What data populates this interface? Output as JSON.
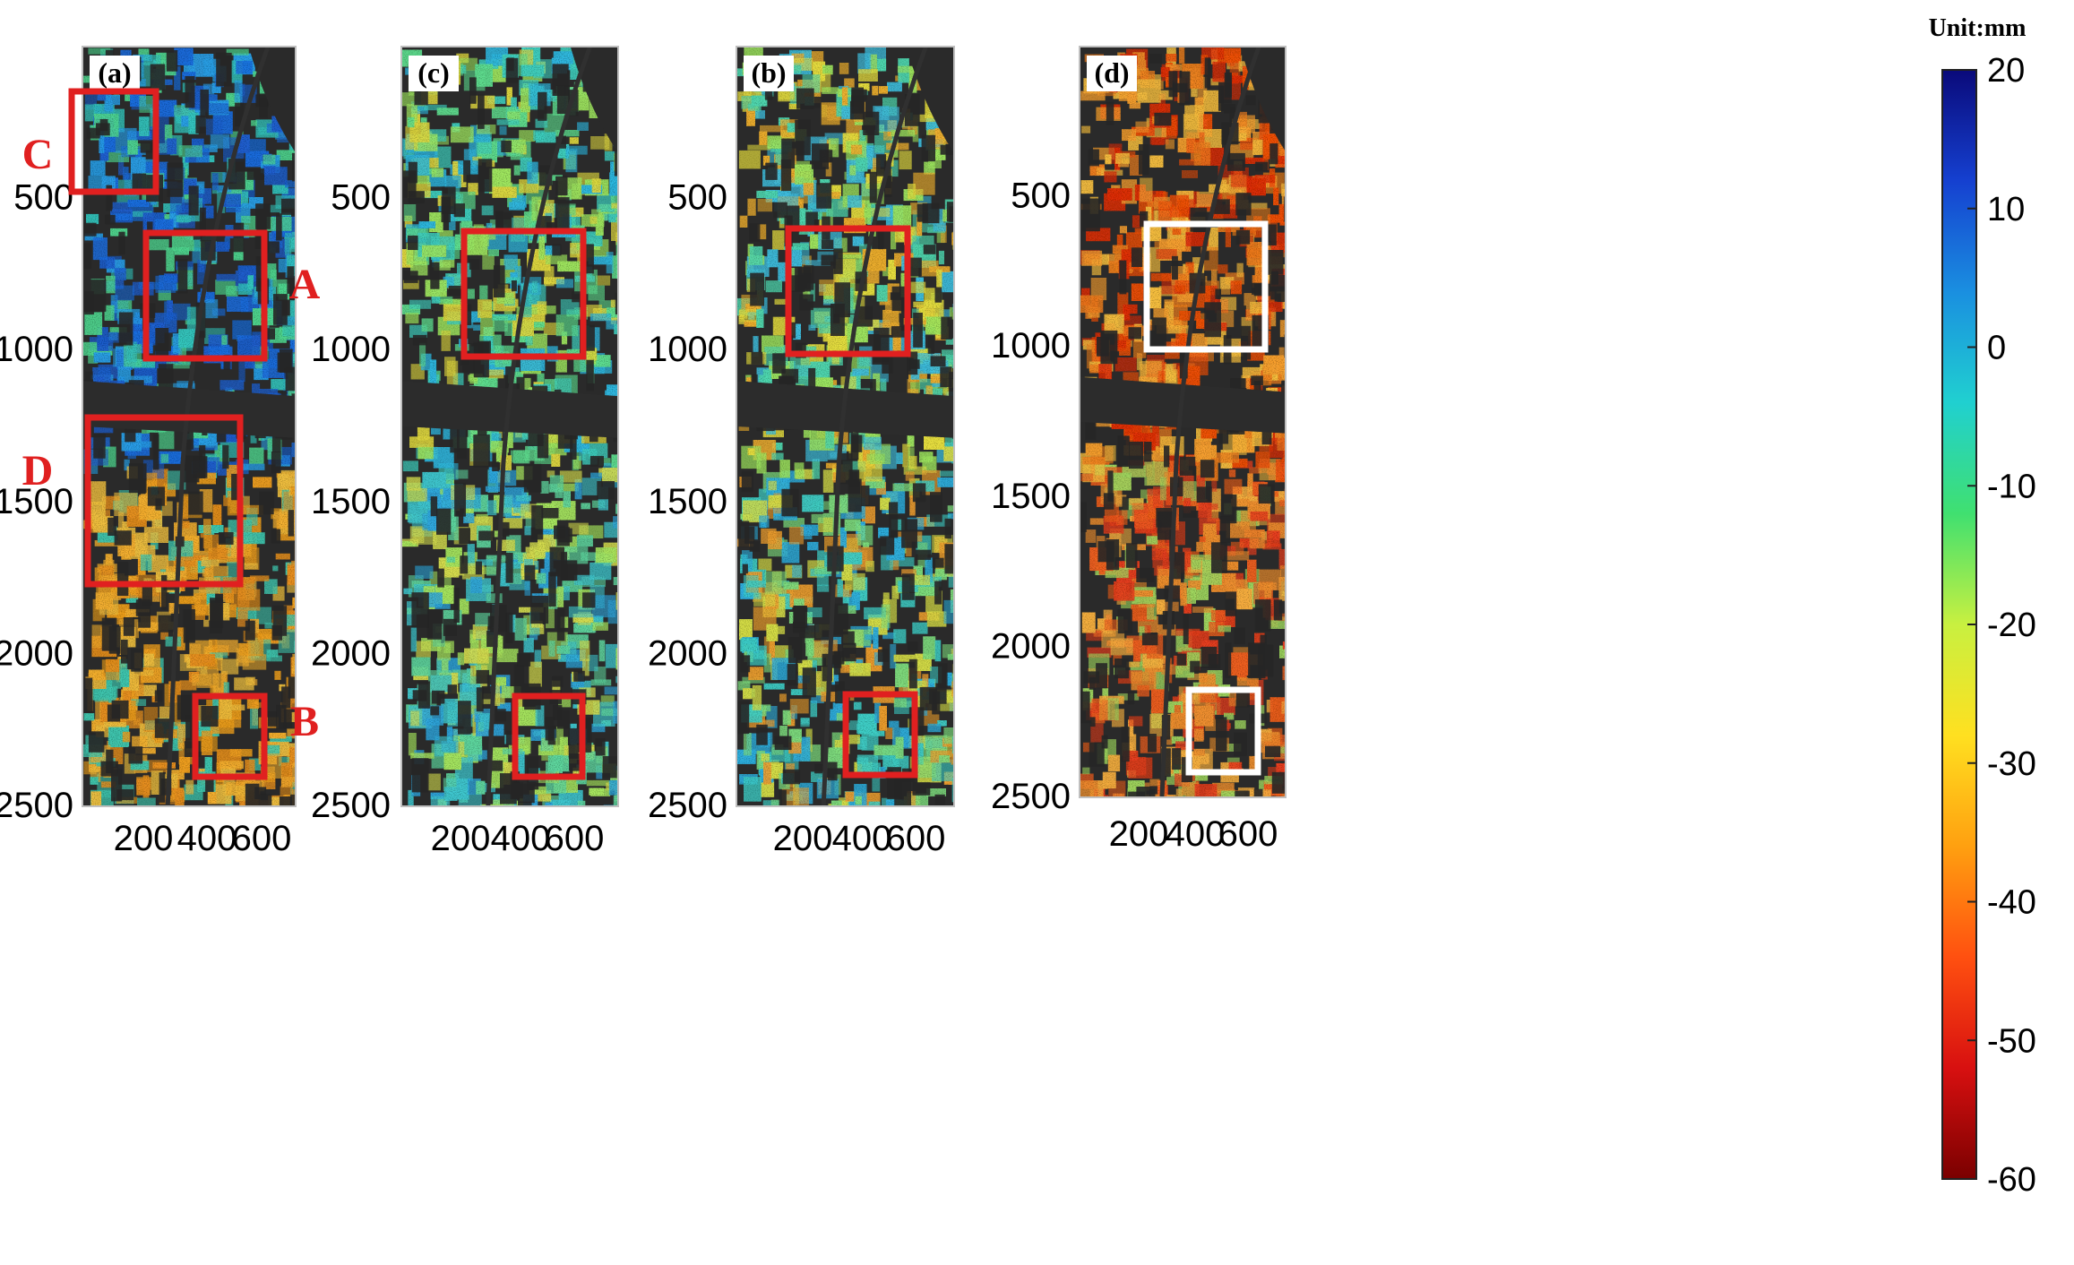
{
  "figure": {
    "panels": [
      {
        "label": "(a)",
        "palette": "mixed_blue_orange",
        "yticks": [
          "500",
          "1000",
          "1500",
          "2000",
          "2500"
        ],
        "xticks": [
          "200",
          "400",
          "600"
        ],
        "boxes": [
          {
            "label": "C",
            "color": "#e02020"
          },
          {
            "label": "A",
            "color": "#e02020"
          },
          {
            "label": "D",
            "color": "#e02020"
          },
          {
            "label": "B",
            "color": "#e02020"
          }
        ]
      },
      {
        "label": "(c)",
        "palette": "cyan_green",
        "yticks": [
          "500",
          "1000",
          "1500",
          "2000",
          "2500"
        ],
        "xticks": [
          "200",
          "400",
          "600"
        ],
        "boxes": [
          {
            "label": "",
            "color": "#e02020"
          },
          {
            "label": "",
            "color": "#e02020"
          }
        ]
      },
      {
        "label": "(b)",
        "palette": "cyan_yellow",
        "yticks": [
          "500",
          "1000",
          "1500",
          "2000",
          "2500"
        ],
        "xticks": [
          "200",
          "400",
          "600"
        ],
        "boxes": [
          {
            "label": "",
            "color": "#e02020"
          },
          {
            "label": "",
            "color": "#e02020"
          }
        ]
      },
      {
        "label": "(d)",
        "palette": "orange_red",
        "yticks": [
          "500",
          "1000",
          "1500",
          "2000",
          "2500"
        ],
        "xticks": [
          "200",
          "400",
          "600"
        ],
        "boxes": [
          {
            "label": "",
            "color": "#ffffff"
          },
          {
            "label": "",
            "color": "#ffffff"
          }
        ]
      }
    ],
    "colorbar": {
      "unit_label": "Unit:mm",
      "ticks": [
        "20",
        "10",
        "0",
        "-10",
        "-20",
        "-30",
        "-40",
        "-50",
        "-60"
      ],
      "stops": [
        "#0a0a7a",
        "#1540d0",
        "#1a8fe0",
        "#20d0d0",
        "#40e070",
        "#c8f040",
        "#ffe020",
        "#ffa010",
        "#ff5010",
        "#d81010",
        "#7a0000"
      ]
    }
  }
}
